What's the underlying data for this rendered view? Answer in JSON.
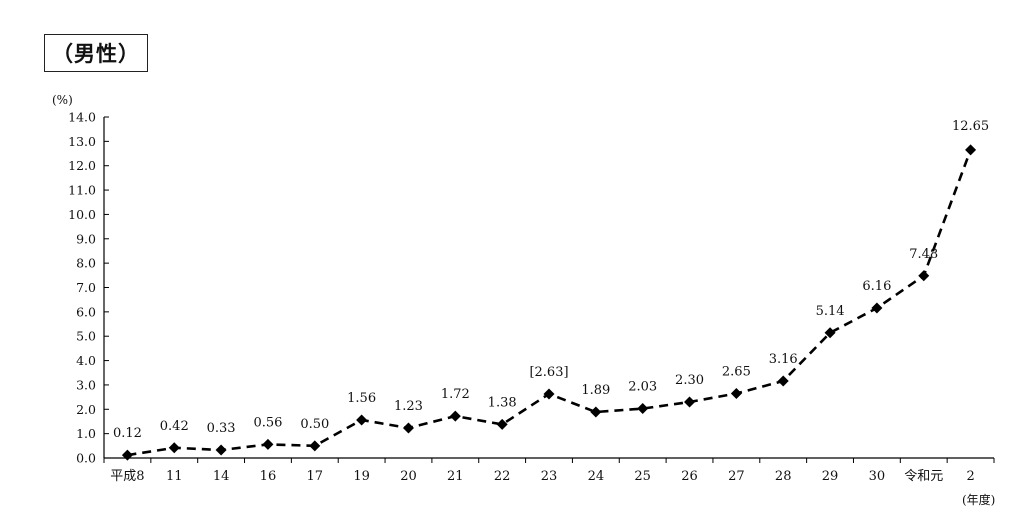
{
  "title": "（男性）",
  "chart_data": {
    "type": "line",
    "y_unit": "(%)",
    "x_unit": "(年度)",
    "categories": [
      "平成8",
      "11",
      "14",
      "16",
      "17",
      "19",
      "20",
      "21",
      "22",
      "23",
      "24",
      "25",
      "26",
      "27",
      "28",
      "29",
      "30",
      "令和元",
      "2"
    ],
    "values": [
      0.12,
      0.42,
      0.33,
      0.56,
      0.5,
      1.56,
      1.23,
      1.72,
      1.38,
      2.63,
      1.89,
      2.03,
      2.3,
      2.65,
      3.16,
      5.14,
      6.16,
      7.48,
      12.65
    ],
    "data_labels": [
      "0.12",
      "0.42",
      "0.33",
      "0.56",
      "0.50",
      "1.56",
      "1.23",
      "1.72",
      "1.38",
      "[2.63]",
      "1.89",
      "2.03",
      "2.30",
      "2.65",
      "3.16",
      "5.14",
      "6.16",
      "7.48",
      "12.65"
    ],
    "ylim": [
      0,
      14
    ],
    "y_ticks": [
      "0.0",
      "1.0",
      "2.0",
      "3.0",
      "4.0",
      "5.0",
      "6.0",
      "7.0",
      "8.0",
      "9.0",
      "10.0",
      "11.0",
      "12.0",
      "13.0",
      "14.0"
    ],
    "grid": false,
    "legend": "none",
    "line_style": "dashed",
    "marker": "diamond",
    "color": "#000000"
  }
}
